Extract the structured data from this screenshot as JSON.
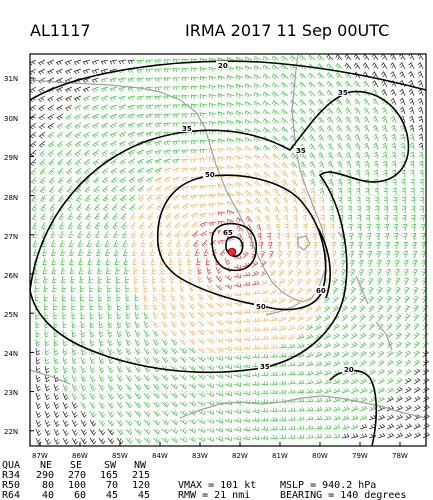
{
  "header": {
    "storm_id": "AL1117",
    "title": "IRMA 2017 11 Sep 00UTC"
  },
  "map": {
    "lat_labels": [
      "31N",
      "30N",
      "29N",
      "28N",
      "27N",
      "26N",
      "25N",
      "24N",
      "23N",
      "22N"
    ],
    "lon_labels": [
      "87W",
      "86W",
      "85W",
      "84W",
      "83W",
      "82W",
      "81W",
      "80W",
      "79W",
      "78W"
    ],
    "contour_labels": [
      "20",
      "35",
      "35",
      "35",
      "50",
      "65",
      "50",
      "60",
      "35",
      "20"
    ],
    "colors": {
      "barb_outer": "#33cc33",
      "barb_mid": "#ffb050",
      "barb_core": "#ff3030",
      "barb_far": "#222222",
      "coast": "#a0a0a0",
      "center": "#ff2020"
    }
  },
  "stats": {
    "quad_header": [
      "QUA",
      "NE",
      "SE",
      "SW",
      "NW"
    ],
    "rows": [
      [
        "R34",
        "290",
        "270",
        "165",
        "215"
      ],
      [
        "R50",
        "80",
        "100",
        "70",
        "120"
      ],
      [
        "R64",
        "40",
        "60",
        "45",
        "45"
      ]
    ],
    "vmax": "VMAX =  101 kt",
    "mslp": "MSLP =  940.2 hPa",
    "rmw": "RMW  =  21 nmi",
    "bearing": "BEARING =  140 degrees"
  }
}
